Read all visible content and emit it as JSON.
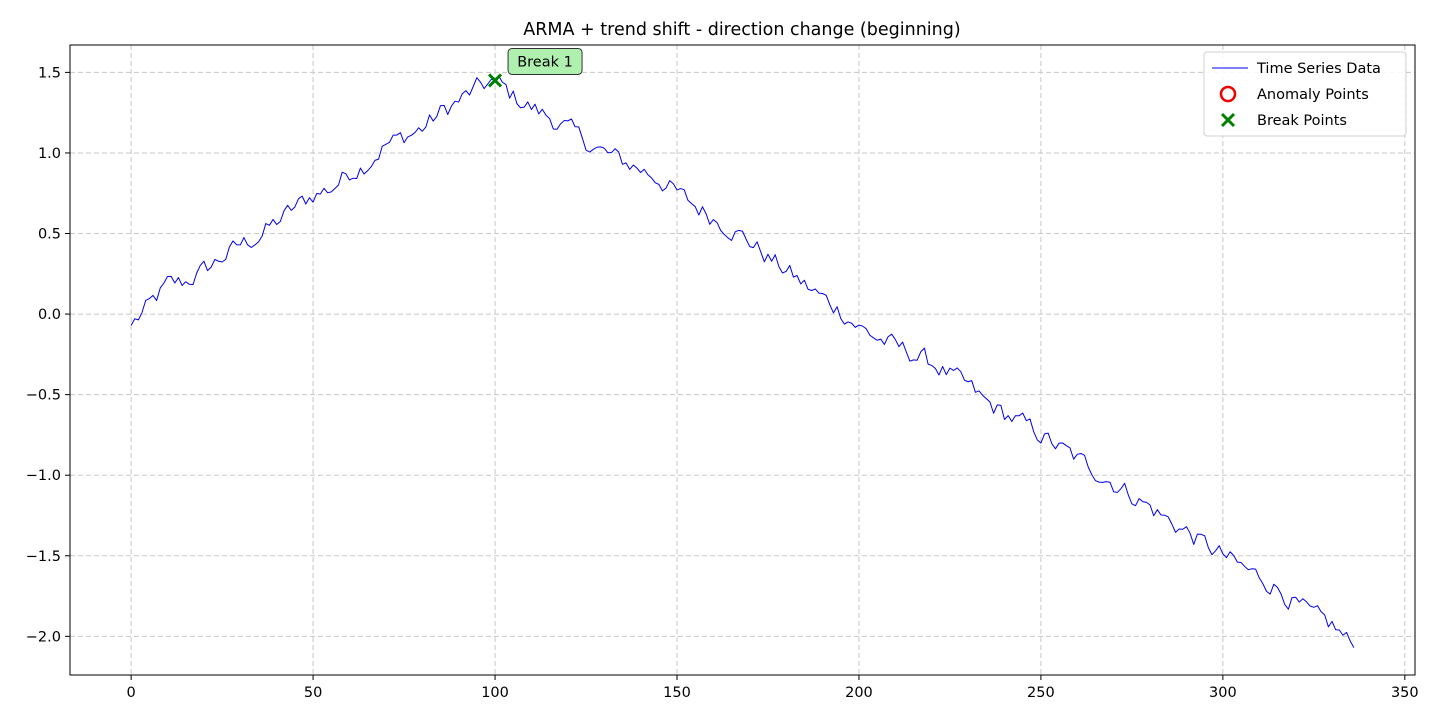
{
  "chart_data": {
    "type": "line",
    "title": "ARMA + trend shift - direction change (beginning)",
    "xlabel": "",
    "ylabel": "",
    "xlim": [
      -16.8,
      352.8
    ],
    "ylim": [
      -2.24,
      1.67
    ],
    "xticks": [
      0,
      50,
      100,
      150,
      200,
      250,
      300,
      350
    ],
    "yticks": [
      -2.0,
      -1.5,
      -1.0,
      -0.5,
      0.0,
      0.5,
      1.0,
      1.5
    ],
    "ytick_labels": [
      "−2.0",
      "−1.5",
      "−1.0",
      "−0.5",
      "0.0",
      "0.5",
      "1.0",
      "1.5"
    ],
    "grid": true,
    "legend_position": "top-right",
    "legend": [
      "Time Series Data",
      "Anomaly Points",
      "Break Points"
    ],
    "series": [
      {
        "name": "Time Series Data",
        "color": "#0000ee",
        "keypoints": [
          [
            0,
            -0.07
          ],
          [
            5,
            0.05
          ],
          [
            10,
            0.18
          ],
          [
            15,
            0.2
          ],
          [
            20,
            0.27
          ],
          [
            25,
            0.35
          ],
          [
            30,
            0.43
          ],
          [
            35,
            0.48
          ],
          [
            40,
            0.57
          ],
          [
            45,
            0.66
          ],
          [
            50,
            0.74
          ],
          [
            55,
            0.78
          ],
          [
            60,
            0.88
          ],
          [
            65,
            0.94
          ],
          [
            70,
            1.05
          ],
          [
            75,
            1.1
          ],
          [
            80,
            1.15
          ],
          [
            85,
            1.25
          ],
          [
            90,
            1.32
          ],
          [
            95,
            1.4
          ],
          [
            100,
            1.45
          ],
          [
            105,
            1.35
          ],
          [
            110,
            1.28
          ],
          [
            115,
            1.22
          ],
          [
            120,
            1.15
          ],
          [
            125,
            1.07
          ],
          [
            130,
            1.0
          ],
          [
            135,
            0.95
          ],
          [
            140,
            0.9
          ],
          [
            145,
            0.84
          ],
          [
            150,
            0.75
          ],
          [
            155,
            0.67
          ],
          [
            160,
            0.6
          ],
          [
            165,
            0.53
          ],
          [
            170,
            0.45
          ],
          [
            175,
            0.35
          ],
          [
            180,
            0.27
          ],
          [
            185,
            0.18
          ],
          [
            190,
            0.1
          ],
          [
            195,
            0.02
          ],
          [
            200,
            -0.08
          ],
          [
            205,
            -0.15
          ],
          [
            210,
            -0.2
          ],
          [
            215,
            -0.25
          ],
          [
            220,
            -0.3
          ],
          [
            225,
            -0.38
          ],
          [
            230,
            -0.45
          ],
          [
            235,
            -0.55
          ],
          [
            240,
            -0.62
          ],
          [
            245,
            -0.68
          ],
          [
            250,
            -0.75
          ],
          [
            255,
            -0.83
          ],
          [
            260,
            -0.9
          ],
          [
            265,
            -0.97
          ],
          [
            270,
            -1.05
          ],
          [
            275,
            -1.12
          ],
          [
            280,
            -1.2
          ],
          [
            285,
            -1.28
          ],
          [
            290,
            -1.35
          ],
          [
            295,
            -1.43
          ],
          [
            300,
            -1.5
          ],
          [
            305,
            -1.57
          ],
          [
            310,
            -1.63
          ],
          [
            315,
            -1.7
          ],
          [
            320,
            -1.8
          ],
          [
            325,
            -1.88
          ],
          [
            330,
            -1.93
          ],
          [
            333,
            -2.0
          ],
          [
            336,
            -2.07
          ]
        ]
      },
      {
        "name": "Anomaly Points",
        "color": "#ee0000",
        "points": []
      },
      {
        "name": "Break Points",
        "color": "#008000",
        "points": [
          [
            100,
            1.45
          ]
        ]
      }
    ],
    "annotations": [
      {
        "text": "Break 1",
        "x": 100,
        "y": 1.45
      }
    ]
  }
}
